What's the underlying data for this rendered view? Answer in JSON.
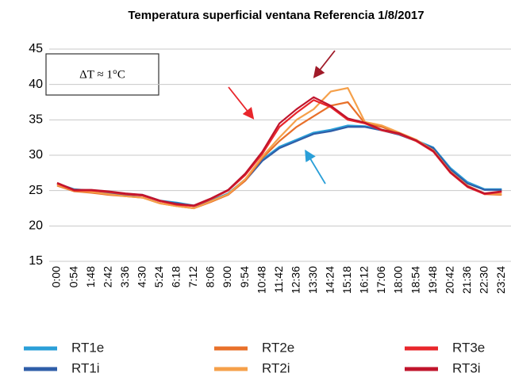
{
  "chart_data": {
    "type": "line",
    "title": "Temperatura superficial ventana Referencia 1/8/2017",
    "annotation": "ΔT ≈ 1°C",
    "categories": [
      "0:00",
      "0:54",
      "1:48",
      "2:42",
      "3:36",
      "4:30",
      "5:24",
      "6:18",
      "7:12",
      "8:06",
      "9:00",
      "9:54",
      "10:48",
      "11:42",
      "12:36",
      "13:30",
      "14:24",
      "15:18",
      "16:12",
      "17:06",
      "18:00",
      "18:54",
      "19:48",
      "20:42",
      "21:36",
      "22:30",
      "23:24"
    ],
    "series": [
      {
        "name": "RT1e",
        "color": "#2a9fd8",
        "values": [
          26,
          25.2,
          25,
          24.7,
          24.5,
          24.4,
          23.6,
          23.3,
          22.9,
          23.6,
          24.6,
          26.6,
          29.4,
          31.2,
          32.2,
          33.2,
          33.6,
          34.2,
          34.1,
          33.6,
          33,
          32.1,
          31.1,
          28.2,
          26.2,
          25.2,
          25.2
        ]
      },
      {
        "name": "RT1i",
        "color": "#2f5ea8",
        "values": [
          25.9,
          25.1,
          24.9,
          24.6,
          24.4,
          24.3,
          23.5,
          23.2,
          22.8,
          23.5,
          24.5,
          26.4,
          29.2,
          31,
          32,
          33,
          33.4,
          34,
          34,
          33.5,
          32.9,
          32,
          31,
          28,
          26,
          25.1,
          25.1
        ]
      },
      {
        "name": "RT2e",
        "color": "#e8702a",
        "values": [
          25.7,
          24.9,
          24.7,
          24.4,
          24.2,
          24,
          23.2,
          22.8,
          22.5,
          23.4,
          24.4,
          26.4,
          29.6,
          32,
          34,
          35.5,
          37,
          37.5,
          34.5,
          34,
          33,
          32,
          30.6,
          27.6,
          25.6,
          24.5,
          24.4
        ]
      },
      {
        "name": "RT2i",
        "color": "#f5a04a",
        "values": [
          25.8,
          25,
          24.8,
          24.5,
          24.2,
          24,
          23.2,
          22.8,
          22.5,
          23.5,
          24.5,
          26.6,
          29.8,
          32.5,
          35,
          36.5,
          39,
          39.5,
          34.7,
          34.2,
          33.2,
          32.2,
          30.7,
          27.7,
          25.7,
          24.6,
          24.5
        ]
      },
      {
        "name": "RT3e",
        "color": "#e8262b",
        "values": [
          26,
          25,
          25,
          24.8,
          24.5,
          24.3,
          23.5,
          23,
          22.8,
          23.8,
          25,
          27.2,
          30.2,
          34,
          36,
          37.8,
          36.8,
          35,
          34.5,
          33.5,
          33,
          32,
          30.5,
          27.5,
          25.5,
          24.5,
          24.8
        ]
      },
      {
        "name": "RT3i",
        "color": "#c0142c",
        "values": [
          26.1,
          25.1,
          25.1,
          24.9,
          24.6,
          24.4,
          23.6,
          23.1,
          22.9,
          23.9,
          25.1,
          27.4,
          30.5,
          34.5,
          36.5,
          38.2,
          37,
          35.2,
          34.6,
          33.6,
          33.1,
          32.1,
          30.6,
          27.6,
          25.6,
          24.6,
          24.9
        ]
      }
    ],
    "ylim": [
      15,
      45
    ],
    "yticks": [
      15,
      20,
      25,
      30,
      35,
      40,
      45
    ],
    "grid": true,
    "legend": "bottom"
  }
}
